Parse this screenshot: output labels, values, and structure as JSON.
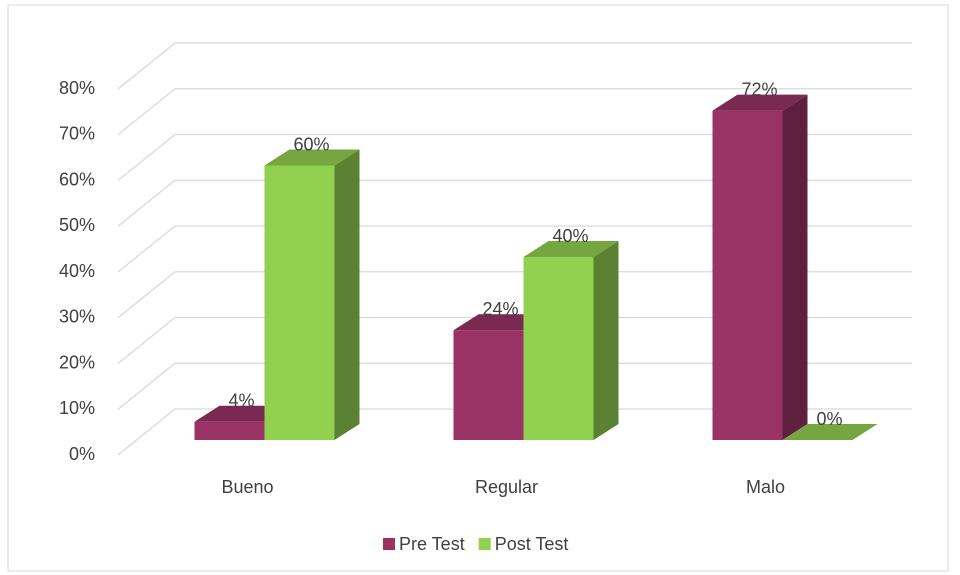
{
  "chart_data": {
    "type": "bar3d",
    "categories": [
      "Bueno",
      "Regular",
      "Malo"
    ],
    "series": [
      {
        "name": "Pre Test",
        "color": "#993366",
        "values": [
          4,
          24,
          72
        ],
        "value_labels": [
          "4%",
          "24%",
          "72%"
        ]
      },
      {
        "name": "Post Test",
        "color": "#92d050",
        "values": [
          60,
          40,
          0
        ],
        "value_labels": [
          "60%",
          "40%",
          "0%"
        ]
      }
    ],
    "ylim": [
      0,
      80
    ],
    "yticks": [
      {
        "value": 0,
        "label": "0%"
      },
      {
        "value": 10,
        "label": "10%"
      },
      {
        "value": 20,
        "label": "20%"
      },
      {
        "value": 30,
        "label": "30%"
      },
      {
        "value": 40,
        "label": "40%"
      },
      {
        "value": 50,
        "label": "50%"
      },
      {
        "value": 60,
        "label": "60%"
      },
      {
        "value": 70,
        "label": "70%"
      },
      {
        "value": 80,
        "label": "80%"
      }
    ],
    "grid": true,
    "legend": "bottom"
  }
}
